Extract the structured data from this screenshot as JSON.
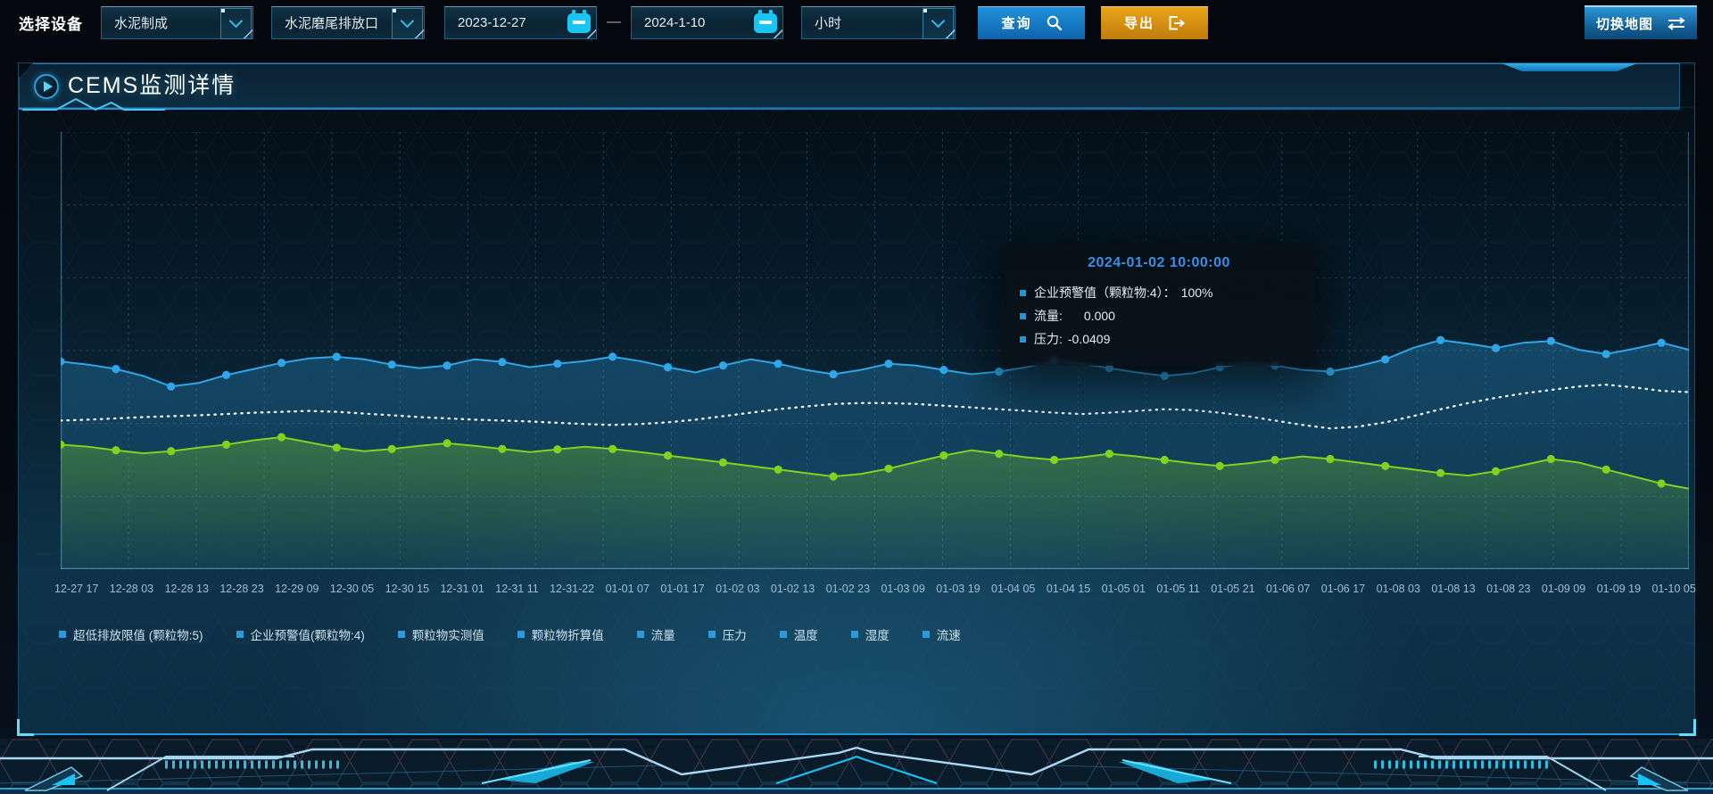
{
  "toolbar": {
    "device_label": "选择设备",
    "selects": {
      "line": "水泥制成",
      "outlet": "水泥磨尾排放口",
      "interval": "小时"
    },
    "date_start": "2023-12-27",
    "date_separator": "—",
    "date_end": "2024-1-10",
    "query_label": "查询",
    "export_label": "导出",
    "switch_map_label": "切换地图"
  },
  "panel": {
    "title": "CEMS监测详情"
  },
  "tooltip": {
    "title": "2024-01-02 10:00:00",
    "title_color": "#3a8ee6",
    "marker_color": "#2196d8",
    "rows": [
      {
        "label": "企业预警值（颗粒物:4）：",
        "value": "100%"
      },
      {
        "label": "流量:",
        "value": "0.000"
      },
      {
        "label": "压力:",
        "value": "-0.0409"
      }
    ]
  },
  "legend": {
    "marker_color": "#2a9ad8",
    "items": [
      "超低排放限值 (颗粒物:5)",
      "企业预警值(颗粒物:4)",
      "颗粒物实测值",
      "颗粒物折算值",
      "流量",
      "压力",
      "温度",
      "湿度",
      "流速"
    ]
  },
  "colors": {
    "accent_blue": "#2196d8",
    "accent_cyan": "#19c2f2",
    "export_orange": "#dd9414",
    "series_blue": "#2ea6e8",
    "series_green": "#7ed321",
    "series_white": "#eef5fa"
  },
  "chart_data": {
    "type": "line",
    "title": "CEMS监测详情",
    "xlabel": "",
    "ylabel": "",
    "y_axis_visible": false,
    "ylim": [
      0,
      100
    ],
    "note": "values are percent of plot height (no y-axis labels shown in UI)",
    "grid": {
      "v_divisions": 24,
      "h_divisions": 6,
      "style": "dashed"
    },
    "legend_position": "bottom",
    "marker_every": 2,
    "x_labels": [
      "12-27 17",
      "12-28 03",
      "12-28 13",
      "12-28 23",
      "12-29 09",
      "12-30 05",
      "12-30 15",
      "12-31 01",
      "12-31 11",
      "12-31-22",
      "01-01 07",
      "01-01 17",
      "01-02 03",
      "01-02 13",
      "01-02 23",
      "01-03 09",
      "01-03 19",
      "01-04 05",
      "01-04 15",
      "01-05 01",
      "01-05 11",
      "01-05 21",
      "01-06 07",
      "01-06 17",
      "01-08 03",
      "01-08 13",
      "01-08 23",
      "01-09 09",
      "01-09 19",
      "01-10 05"
    ],
    "series": [
      {
        "name": "流量",
        "color": "#2ea6e8",
        "style": "solid",
        "markers": true,
        "area": true,
        "values": [
          47.5,
          46.8,
          45.8,
          44.2,
          41.8,
          42.6,
          44.4,
          45.8,
          47.2,
          48.2,
          48.6,
          48.0,
          46.8,
          46.0,
          46.6,
          48.0,
          47.4,
          46.2,
          47.0,
          47.6,
          48.6,
          47.6,
          46.2,
          45.0,
          46.6,
          48.0,
          47.0,
          45.6,
          44.6,
          45.6,
          47.0,
          46.6,
          45.6,
          44.6,
          45.2,
          46.2,
          47.6,
          47.0,
          46.0,
          45.0,
          44.2,
          44.8,
          46.2,
          47.2,
          46.6,
          45.6,
          45.2,
          46.4,
          48.0,
          50.6,
          52.4,
          51.6,
          50.6,
          51.8,
          52.2,
          50.2,
          49.2,
          50.4,
          51.8,
          50.2
        ]
      },
      {
        "name": "企业预警值(颗粒物:4)",
        "color": "#eef5fa",
        "style": "dotted",
        "markers": false,
        "area": false,
        "values": [
          34.0,
          34.2,
          34.5,
          34.8,
          35.0,
          35.2,
          35.5,
          35.8,
          36.0,
          36.2,
          36.0,
          35.6,
          35.2,
          34.8,
          34.5,
          34.2,
          34.0,
          33.8,
          33.5,
          33.2,
          33.0,
          33.2,
          33.6,
          34.2,
          35.0,
          35.8,
          36.6,
          37.2,
          37.8,
          38.0,
          38.0,
          37.8,
          37.4,
          37.0,
          36.6,
          36.2,
          35.8,
          35.5,
          35.8,
          36.2,
          36.6,
          36.4,
          35.8,
          35.0,
          34.0,
          33.0,
          32.2,
          32.6,
          33.6,
          35.0,
          36.6,
          38.0,
          39.2,
          40.2,
          41.0,
          41.8,
          42.2,
          41.6,
          40.8,
          40.5
        ]
      },
      {
        "name": "压力",
        "color": "#7ed321",
        "style": "solid",
        "markers": true,
        "area": true,
        "values": [
          28.5,
          28.0,
          27.2,
          26.5,
          27.0,
          27.8,
          28.5,
          29.5,
          30.2,
          29.0,
          27.8,
          27.0,
          27.5,
          28.2,
          28.8,
          28.2,
          27.5,
          26.8,
          27.4,
          28.0,
          27.5,
          26.8,
          26.0,
          25.2,
          24.4,
          23.6,
          22.8,
          22.0,
          21.2,
          21.8,
          23.0,
          24.5,
          26.0,
          27.2,
          26.4,
          25.6,
          25.0,
          25.6,
          26.4,
          25.8,
          25.0,
          24.2,
          23.6,
          24.2,
          25.0,
          25.8,
          25.2,
          24.4,
          23.6,
          22.8,
          22.0,
          21.4,
          22.4,
          23.8,
          25.2,
          24.4,
          22.8,
          21.2,
          19.6,
          18.4
        ]
      }
    ],
    "tooltip_point": "2024-01-02 10:00:00"
  }
}
